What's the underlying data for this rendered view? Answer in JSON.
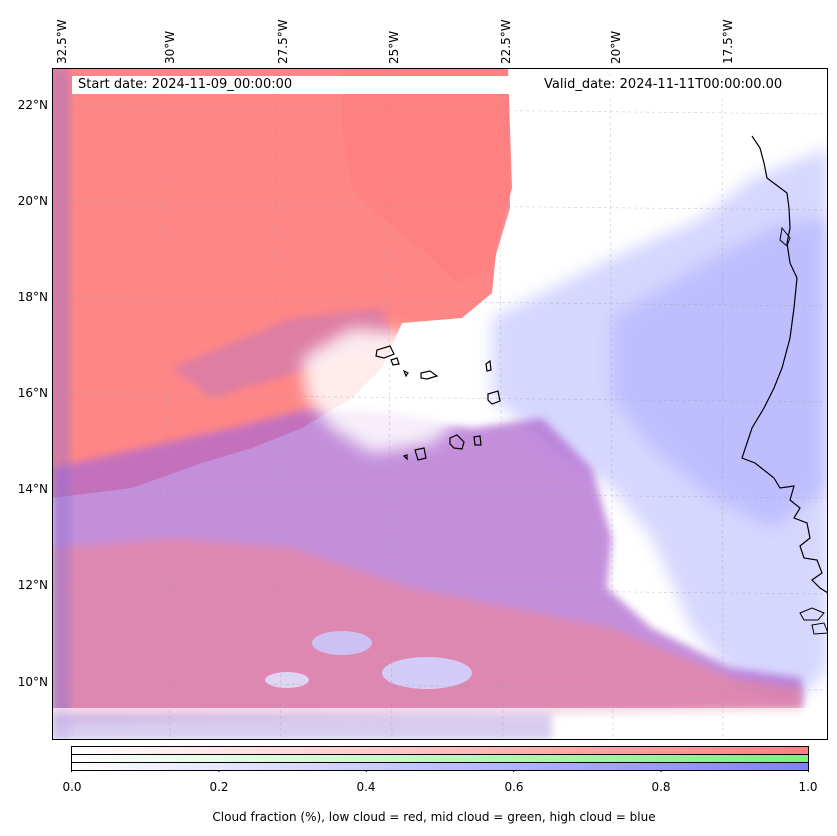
{
  "map": {
    "start_label": "Start date: 2024-11-09_00:00:00",
    "valid_label": "Valid_date: 2024-11-11T00:00:00.00",
    "lon_ticks": [
      "32.5°W",
      "30°W",
      "27.5°W",
      "25°W",
      "22.5°W",
      "20°W",
      "17.5°W"
    ],
    "lat_ticks": [
      "22°N",
      "20°N",
      "18°N",
      "16°N",
      "14°N",
      "12°N",
      "10°N"
    ],
    "colors": {
      "low_cloud": "#ff7f7f",
      "mid_cloud": "#80ee80",
      "high_cloud": "#8080ff",
      "coastline": "#000000"
    }
  },
  "colorbar": {
    "ticks": [
      "0.0",
      "0.2",
      "0.4",
      "0.6",
      "0.8",
      "1.0"
    ],
    "label": "Cloud fraction (%), low cloud = red, mid cloud = green, high cloud = blue"
  }
}
